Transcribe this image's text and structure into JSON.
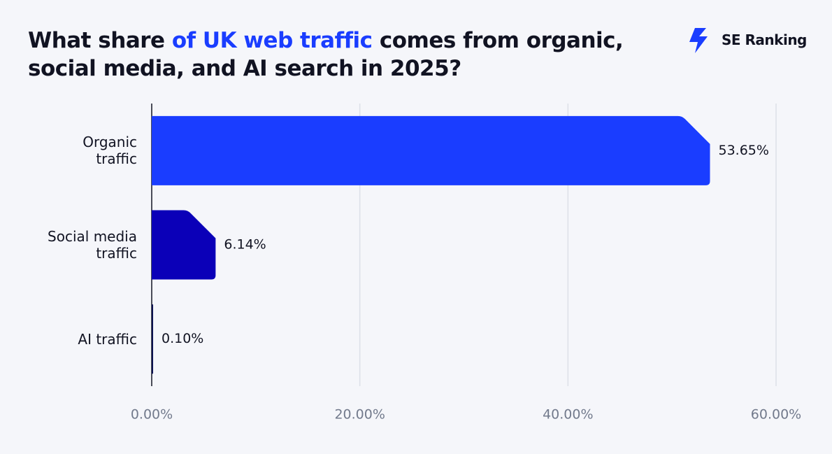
{
  "chart_data": {
    "type": "hbar",
    "title": {
      "before": "What share ",
      "highlight": "of UK web traffic",
      "after": " comes from organic, social media, and AI search in 2025?"
    },
    "brand": "SE Ranking",
    "categories": [
      "Organic\ntraffic",
      "Social media\ntraffic",
      "AI traffic"
    ],
    "values": [
      53.65,
      6.14,
      0.1
    ],
    "value_labels": [
      "53.65%",
      "6.14%",
      "0.10%"
    ],
    "colors": [
      "#1a3dff",
      "#0b00b8",
      "#0c1250"
    ],
    "xlim": [
      0,
      60
    ],
    "xticks": [
      {
        "value": 0,
        "label": "0.00%"
      },
      {
        "value": 20,
        "label": "20.00%"
      },
      {
        "value": 40,
        "label": "40.00%"
      },
      {
        "value": 60,
        "label": "60.00%"
      }
    ],
    "grid": true
  }
}
